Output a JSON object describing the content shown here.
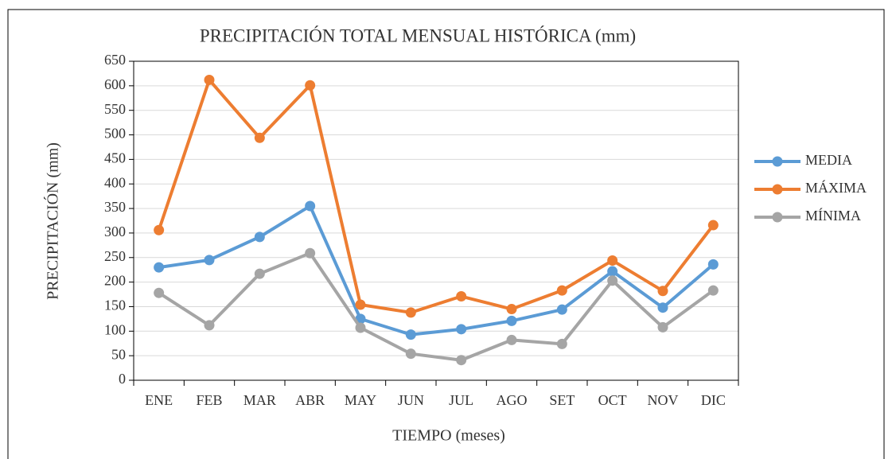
{
  "chart_data": {
    "type": "line",
    "title": "PRECIPITACIÓN TOTAL MENSUAL HISTÓRICA (mm)",
    "x_label": "TIEMPO (meses)",
    "y_label": "PRECIPITACIÓN (mm)",
    "categories": [
      "ENE",
      "FEB",
      "MAR",
      "ABR",
      "MAY",
      "JUN",
      "JUL",
      "AGO",
      "SET",
      "OCT",
      "NOV",
      "DIC"
    ],
    "series": [
      {
        "name": "MEDIA",
        "color": "#5b9bd5",
        "values": [
          230,
          245,
          292,
          355,
          125,
          93,
          104,
          121,
          144,
          222,
          148,
          236
        ]
      },
      {
        "name": "MÁXIMA",
        "color": "#ed7d31",
        "values": [
          306,
          612,
          494,
          601,
          154,
          138,
          171,
          145,
          183,
          244,
          182,
          316
        ]
      },
      {
        "name": "MÍNIMA",
        "color": "#a5a5a5",
        "values": [
          178,
          112,
          217,
          259,
          107,
          54,
          41,
          82,
          74,
          203,
          108,
          183
        ]
      }
    ],
    "ylim": [
      0,
      650
    ],
    "yticks": [
      0,
      50,
      100,
      150,
      200,
      250,
      300,
      350,
      400,
      450,
      500,
      550,
      600,
      650
    ],
    "grid": true,
    "legend": "right"
  }
}
